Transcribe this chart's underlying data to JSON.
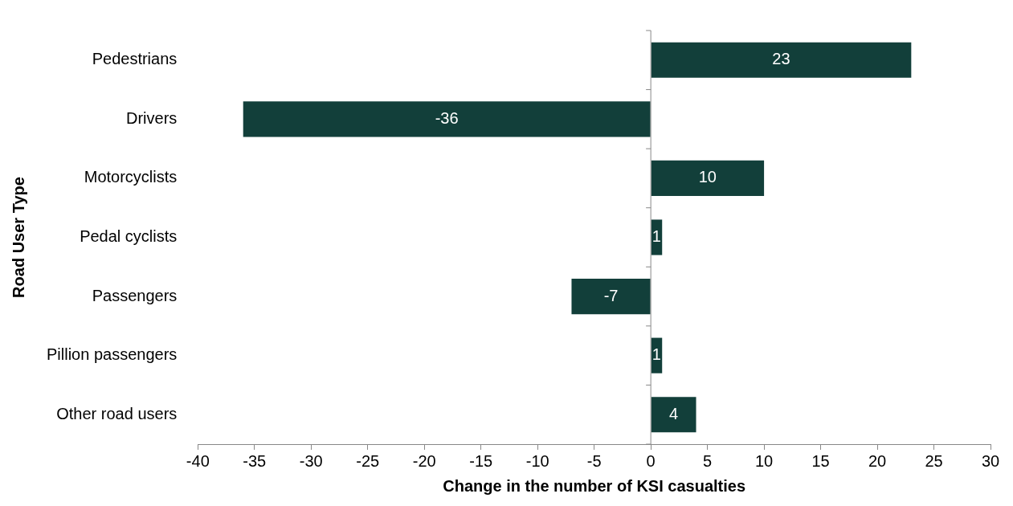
{
  "chart_data": {
    "type": "bar",
    "orientation": "horizontal",
    "xlabel": "Change in the number of KSI casualties",
    "ylabel": "Road User Type",
    "categories": [
      "Pedestrians",
      "Drivers",
      "Motorcyclists",
      "Pedal cyclists",
      "Passengers",
      "Pillion passengers",
      "Other road users"
    ],
    "values": [
      23,
      -36,
      10,
      1,
      -7,
      1,
      4
    ],
    "color": "#123f3a",
    "xlim": [
      -40,
      30
    ],
    "xticks": [
      -40,
      -35,
      -30,
      -25,
      -20,
      -15,
      -10,
      -5,
      0,
      5,
      10,
      15,
      20,
      25,
      30
    ],
    "data_labels": true
  }
}
